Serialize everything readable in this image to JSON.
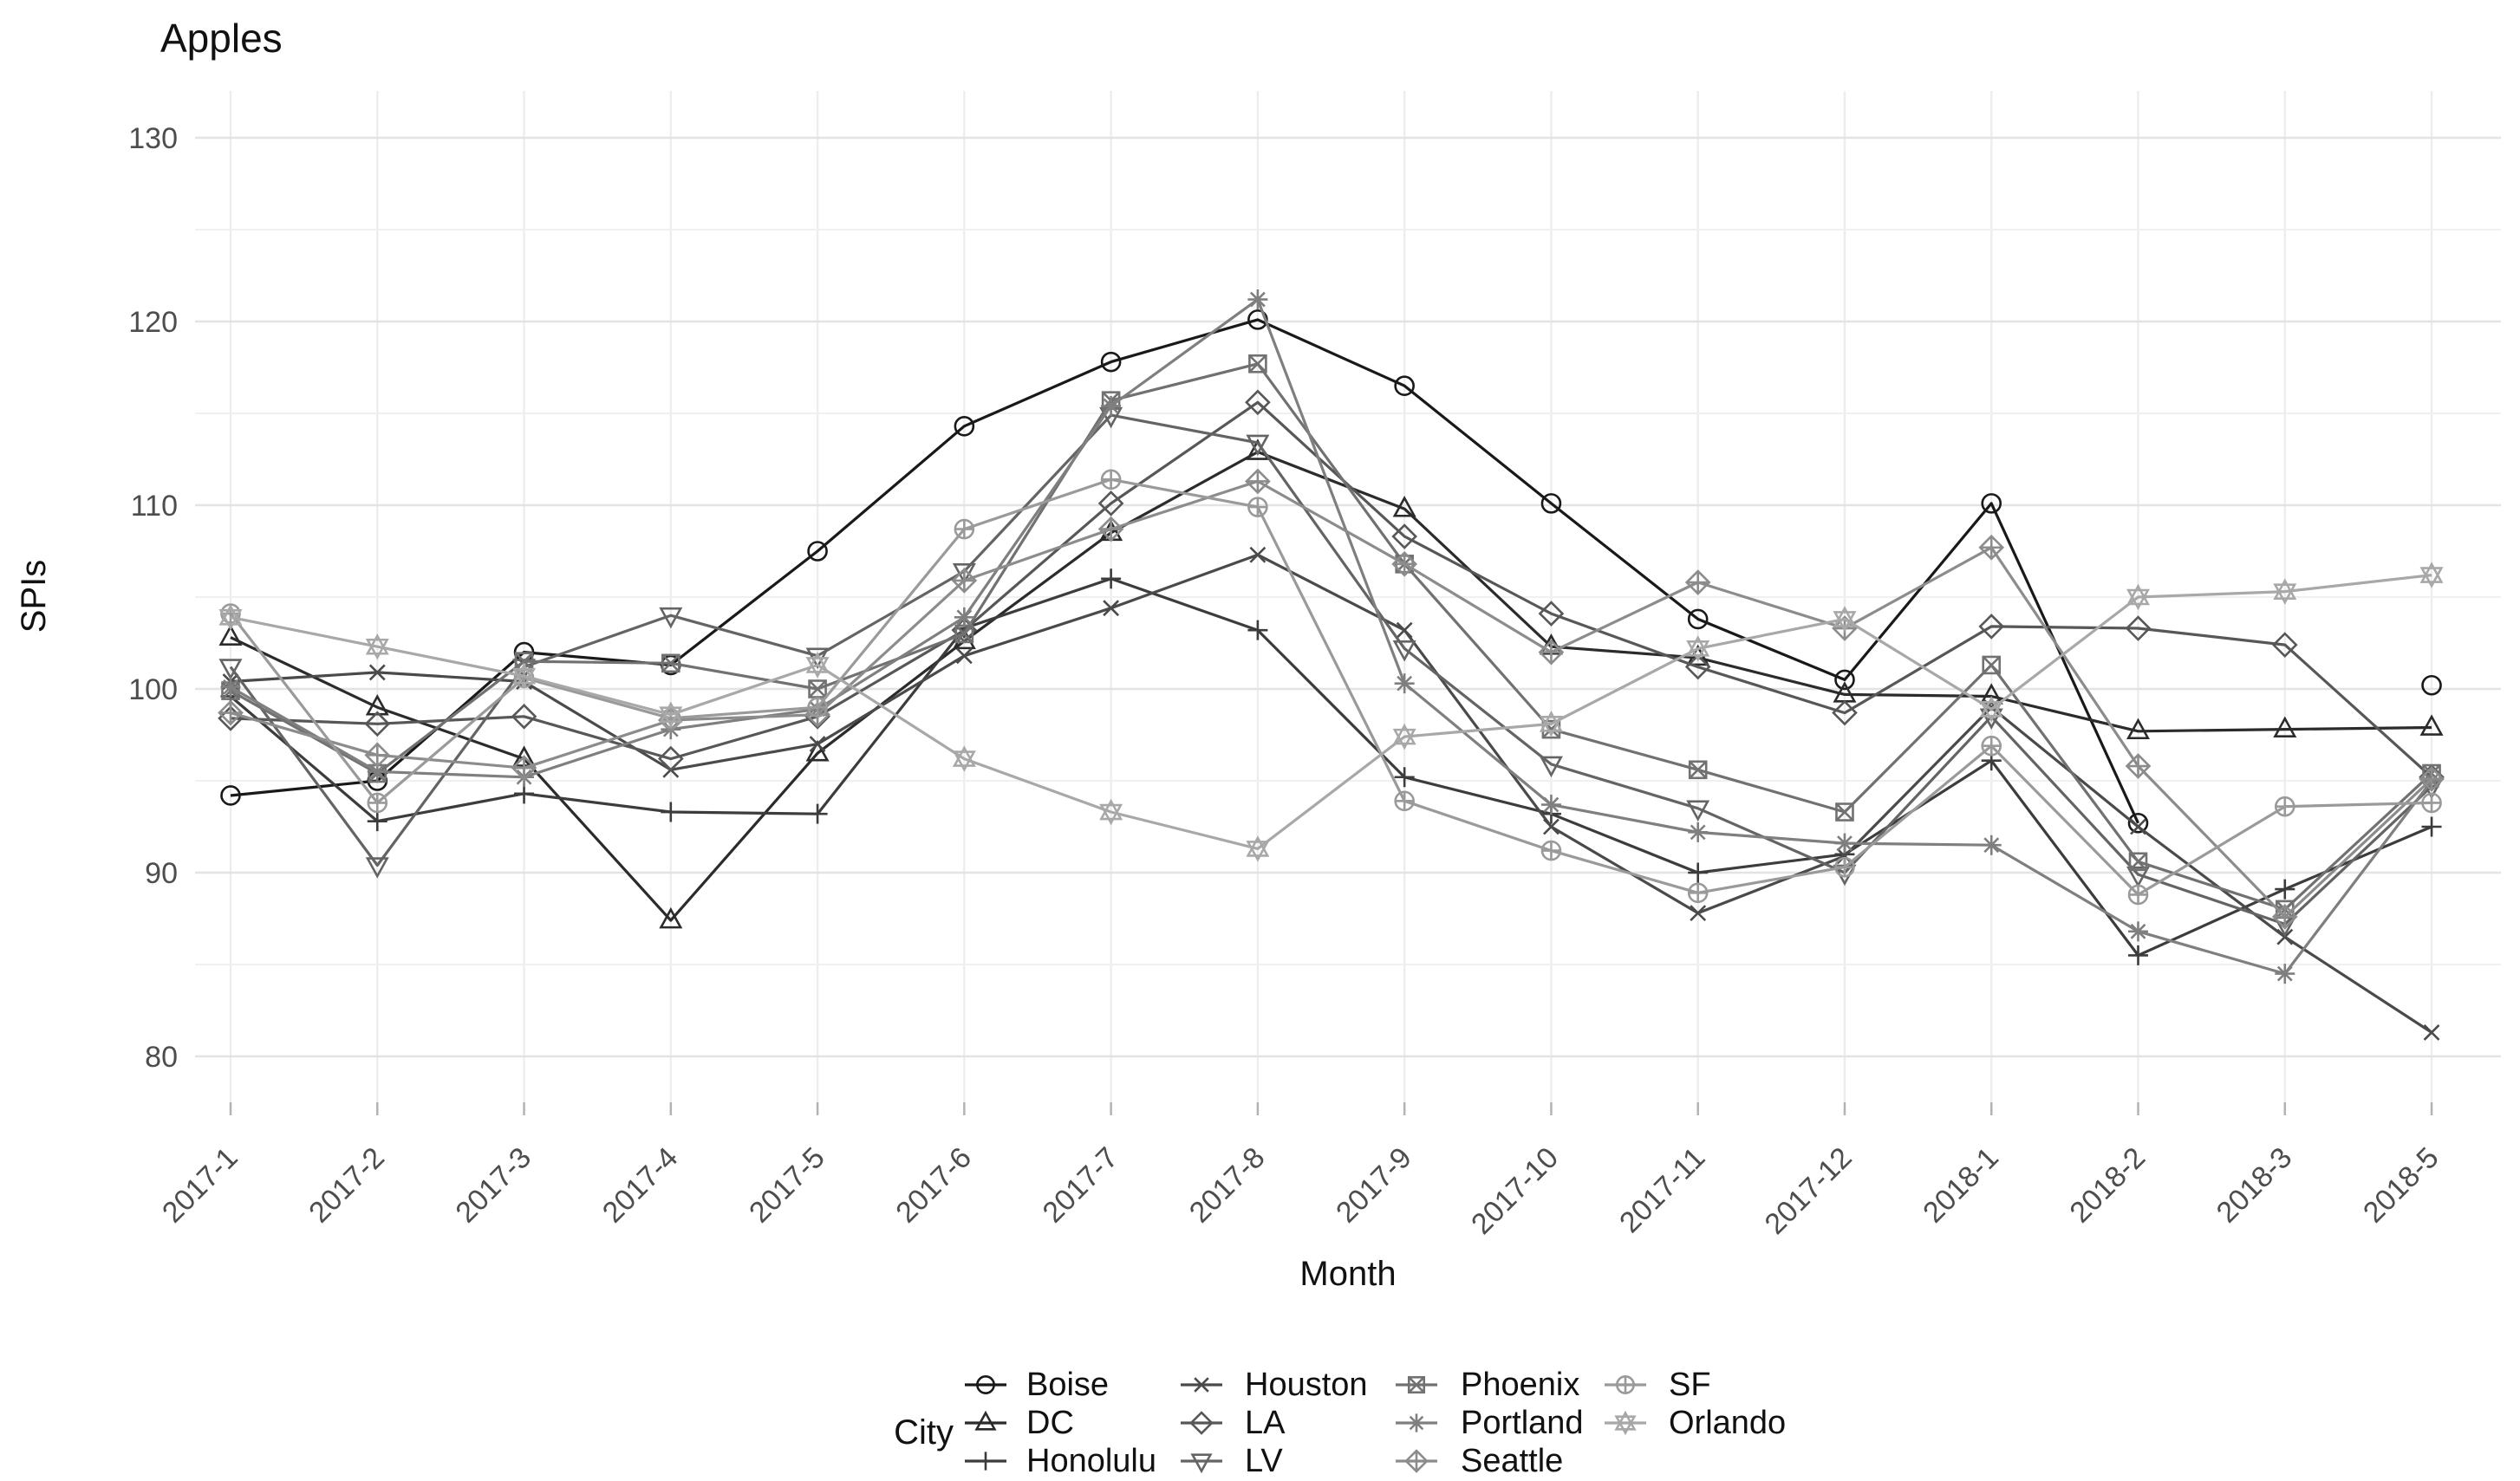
{
  "chart_data": {
    "type": "line",
    "title": "Apples",
    "xlabel": "Month",
    "ylabel": "SPIs",
    "legend_title": "City",
    "legend_position": "bottom",
    "grid": "on",
    "ylim": [
      77.5,
      132.5
    ],
    "yticks_major": [
      80,
      90,
      100,
      110,
      120,
      130
    ],
    "yticks_minor": [
      85,
      95,
      105,
      115,
      125
    ],
    "categories": [
      "2017-1",
      "2017-2",
      "2017-3",
      "2017-4",
      "2017-5",
      "2017-6",
      "2017-7",
      "2017-8",
      "2017-9",
      "2017-10",
      "2017-11",
      "2017-12",
      "2018-1",
      "2018-2",
      "2018-3",
      "2018-5"
    ],
    "series": [
      {
        "name": "Boise",
        "marker": "circle-open",
        "color": "#191919",
        "values": [
          94.2,
          95.0,
          102.0,
          101.3,
          107.5,
          114.3,
          117.8,
          120.1,
          116.5,
          110.1,
          103.8,
          100.5,
          110.1,
          92.7,
          null,
          100.2
        ]
      },
      {
        "name": "DC",
        "marker": "triangle-open",
        "color": "#2b2b2b",
        "values": [
          102.8,
          99.0,
          96.2,
          87.4,
          96.5,
          102.6,
          108.5,
          112.9,
          109.8,
          102.3,
          101.7,
          99.7,
          99.6,
          97.7,
          97.8,
          97.9
        ]
      },
      {
        "name": "Honolulu",
        "marker": "plus",
        "color": "#3c3c3c",
        "values": [
          99.6,
          92.8,
          94.3,
          93.3,
          93.2,
          103.3,
          106.0,
          103.2,
          95.2,
          93.2,
          90.0,
          91.0,
          96.1,
          85.5,
          89.1,
          92.5
        ]
      },
      {
        "name": "Houston",
        "marker": "cross",
        "color": "#4a4a4a",
        "values": [
          100.4,
          100.9,
          100.4,
          95.6,
          97.0,
          101.8,
          104.4,
          107.3,
          103.2,
          92.5,
          87.8,
          90.9,
          99.0,
          92.5,
          86.5,
          81.3
        ]
      },
      {
        "name": "LA",
        "marker": "diamond-open",
        "color": "#575757",
        "values": [
          98.4,
          98.1,
          98.5,
          96.2,
          98.5,
          103.2,
          110.1,
          115.6,
          108.3,
          104.1,
          101.2,
          98.7,
          103.4,
          103.3,
          102.4,
          95.2
        ]
      },
      {
        "name": "LV",
        "marker": "triangle-down-open",
        "color": "#646464",
        "values": [
          101.2,
          90.4,
          101.2,
          104.0,
          101.8,
          106.4,
          114.9,
          113.4,
          102.2,
          95.9,
          93.5,
          90.0,
          98.5,
          89.9,
          87.2,
          94.7
        ]
      },
      {
        "name": "Phoenix",
        "marker": "square-cross",
        "color": "#717171",
        "values": [
          99.9,
          95.4,
          101.5,
          101.4,
          100.0,
          103.0,
          115.7,
          117.7,
          106.8,
          97.8,
          95.6,
          93.3,
          101.3,
          90.6,
          88.0,
          95.4
        ]
      },
      {
        "name": "Portland",
        "marker": "asterisk",
        "color": "#7f7f7f",
        "values": [
          100.1,
          95.5,
          95.2,
          97.8,
          98.9,
          103.9,
          115.4,
          121.2,
          100.3,
          93.7,
          92.2,
          91.6,
          91.5,
          86.8,
          84.5,
          95.0
        ]
      },
      {
        "name": "Seattle",
        "marker": "diamond-plus",
        "color": "#8c8c8c",
        "values": [
          98.7,
          96.4,
          95.7,
          98.3,
          98.6,
          105.9,
          108.7,
          111.3,
          106.8,
          102.0,
          105.8,
          103.3,
          107.7,
          95.8,
          87.6,
          95.1
        ]
      },
      {
        "name": "SF",
        "marker": "circle-plus",
        "color": "#9a9a9a",
        "values": [
          104.1,
          93.8,
          100.6,
          98.4,
          99.0,
          108.7,
          111.4,
          109.9,
          93.9,
          91.2,
          88.9,
          90.3,
          96.9,
          88.8,
          93.6,
          93.8
        ]
      },
      {
        "name": "Orlando",
        "marker": "hexagram",
        "color": "#a8a8a8",
        "values": [
          103.9,
          102.3,
          100.7,
          98.6,
          101.3,
          96.2,
          93.3,
          91.3,
          97.4,
          98.1,
          102.2,
          103.8,
          98.9,
          105.0,
          105.3,
          106.2
        ]
      }
    ]
  },
  "colors": {
    "background": "#ffffff",
    "tick_label": "#4d4d4d",
    "text": "#111111",
    "grid_major": "#e3e3e3",
    "grid_minor": "#f0f0f0",
    "grid_vertical": "#ededed",
    "axis_tick": "#b3b3b3"
  }
}
